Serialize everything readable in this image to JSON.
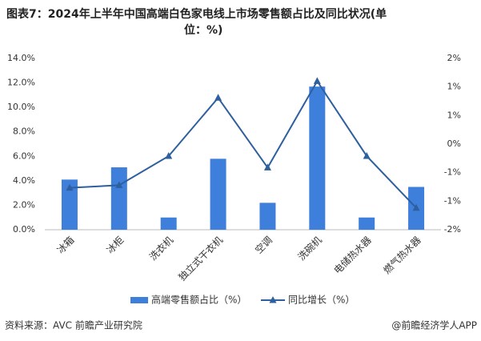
{
  "chart_data": {
    "type": "bar-line",
    "title": "图表7：2024年上半年中国高端白色家电线上市场零售额占比及同比状况(单位：%)",
    "categories": [
      "冰箱",
      "冰柜",
      "洗衣机",
      "独立式干衣机",
      "空调",
      "洗碗机",
      "电储热水器",
      "燃气热水器"
    ],
    "series": [
      {
        "name": "高端零售额占比（%）",
        "type": "bar",
        "color": "#3f7fdc",
        "values": [
          4.1,
          5.1,
          1.0,
          5.8,
          2.2,
          11.7,
          1.0,
          3.5
        ]
      },
      {
        "name": "同比增长（%）",
        "type": "line",
        "axis": "y2",
        "color": "#2e5f9e",
        "values": [
          -1.02,
          -0.96,
          -0.28,
          1.08,
          -0.55,
          1.47,
          -0.28,
          -1.49
        ]
      }
    ],
    "ylim": [
      0,
      14
    ],
    "yticks": [
      {
        "value": 0,
        "label": "0.0%"
      },
      {
        "value": 2,
        "label": "2.0%"
      },
      {
        "value": 4,
        "label": "4.0%"
      },
      {
        "value": 6,
        "label": "6.0%"
      },
      {
        "value": 8,
        "label": "8.0%"
      },
      {
        "value": 10,
        "label": "10.0%"
      },
      {
        "value": 12,
        "label": "12.0%"
      },
      {
        "value": 14,
        "label": "14.0%"
      }
    ],
    "y2lim": [
      -2,
      2
    ],
    "y2ticks": [
      {
        "value": -2,
        "label": "-2%"
      },
      {
        "value": -1.333,
        "label": "-1%"
      },
      {
        "value": -0.667,
        "label": "-1%"
      },
      {
        "value": 0,
        "label": "0%"
      },
      {
        "value": 0.667,
        "label": "1%"
      },
      {
        "value": 1.333,
        "label": "1%"
      },
      {
        "value": 2,
        "label": "2%"
      }
    ],
    "legend": "bottom",
    "source": "资料来源：AVC 前瞻产业研究院",
    "credit": "@前瞻经济学人APP"
  }
}
